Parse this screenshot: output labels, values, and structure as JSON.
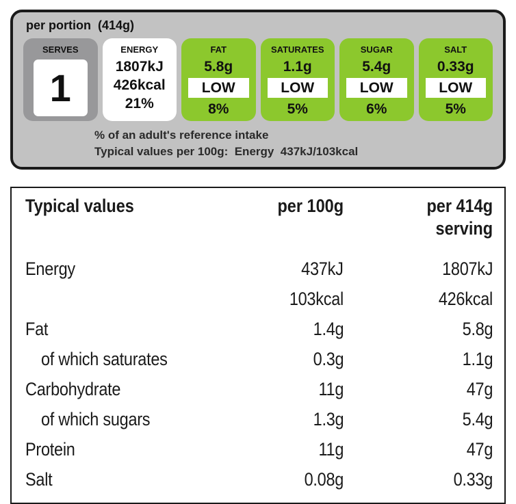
{
  "panel": {
    "header": "per portion  (414g)",
    "serves": {
      "label": "SERVES",
      "value": "1"
    },
    "energy": {
      "label": "ENERGY",
      "kj": "1807kJ",
      "kcal": "426kcal",
      "ri": "21%"
    },
    "nutrients": [
      {
        "label": "FAT",
        "amount": "5.8g",
        "level": "LOW",
        "ri": "8%"
      },
      {
        "label": "SATURATES",
        "amount": "1.1g",
        "level": "LOW",
        "ri": "5%"
      },
      {
        "label": "SUGAR",
        "amount": "5.4g",
        "level": "LOW",
        "ri": "6%"
      },
      {
        "label": "SALT",
        "amount": "0.33g",
        "level": "LOW",
        "ri": "5%"
      }
    ],
    "footnote_line1": "% of an adult's reference intake",
    "footnote_line2": "Typical values per 100g:  Energy  437kJ/103kcal"
  },
  "table": {
    "header": {
      "col_label": "Typical values",
      "col_per100": "per 100g",
      "col_serving": "per 414g\nserving"
    },
    "rows": [
      {
        "label": "Energy",
        "per100": "437kJ",
        "serving": "1807kJ",
        "indent": false
      },
      {
        "label": "",
        "per100": "103kcal",
        "serving": "426kcal",
        "indent": false
      },
      {
        "label": "Fat",
        "per100": "1.4g",
        "serving": "5.8g",
        "indent": false
      },
      {
        "label": "of which saturates",
        "per100": "0.3g",
        "serving": "1.1g",
        "indent": true
      },
      {
        "label": "Carbohydrate",
        "per100": "11g",
        "serving": "47g",
        "indent": false
      },
      {
        "label": "of which sugars",
        "per100": "1.3g",
        "serving": "5.4g",
        "indent": true
      },
      {
        "label": "Protein",
        "per100": "11g",
        "serving": "47g",
        "indent": false
      },
      {
        "label": "Salt",
        "per100": "0.08g",
        "serving": "0.33g",
        "indent": false
      }
    ]
  },
  "colors": {
    "badge_green": "#8cc82d",
    "panel_gray": "#c2c2c2",
    "badge_gray": "#98989a",
    "border_dark": "#1b1b1b"
  }
}
